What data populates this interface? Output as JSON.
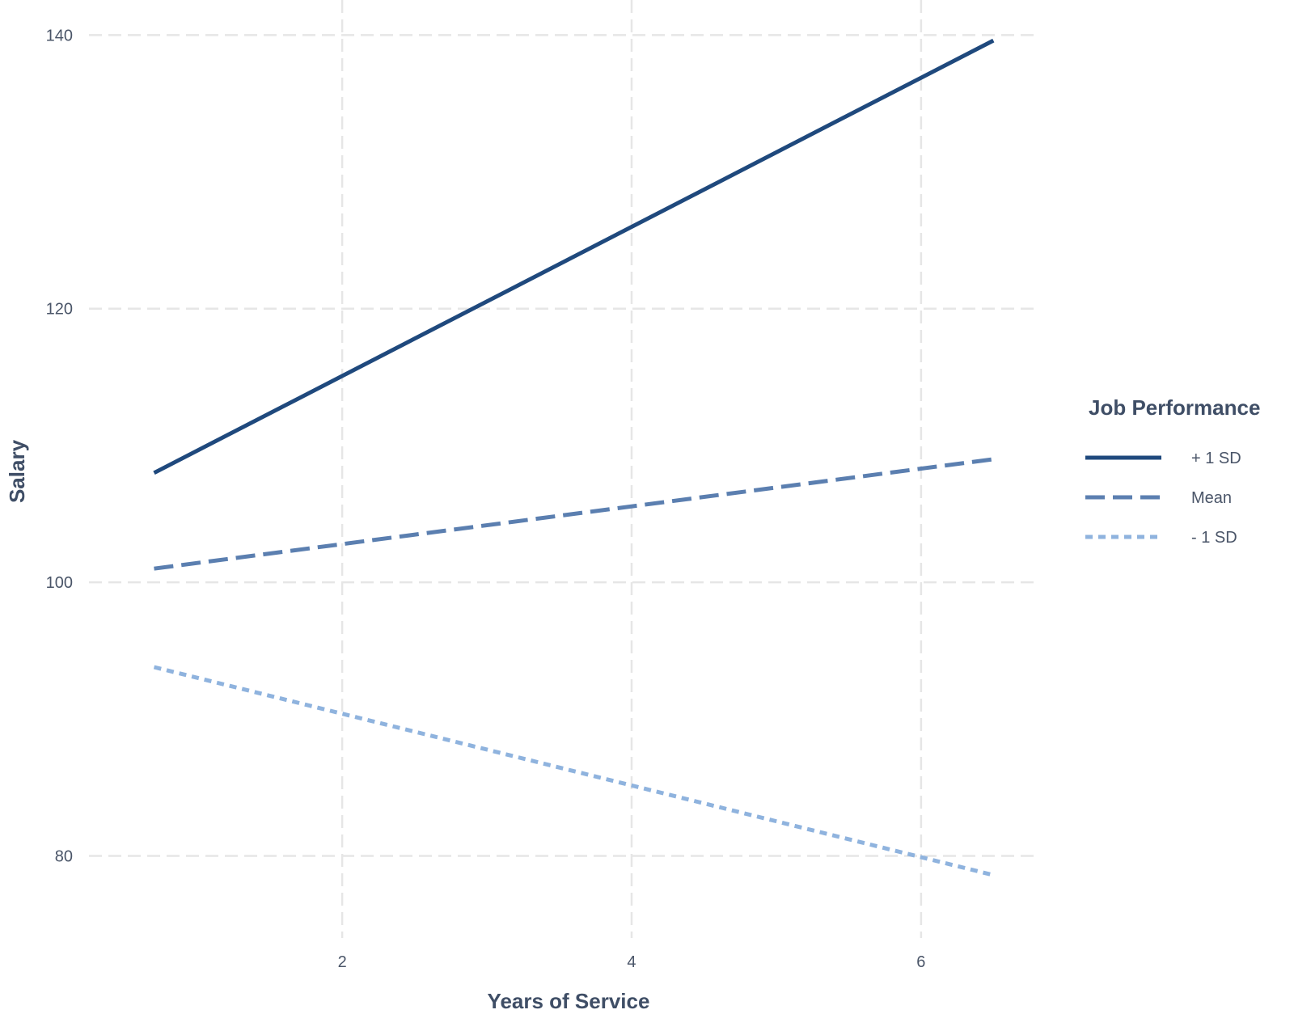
{
  "chart_data": {
    "type": "line",
    "title": "",
    "xlabel": "Years of Service",
    "ylabel": "Salary",
    "xlim": [
      0.25,
      6.8
    ],
    "ylim": [
      74.0,
      141.5
    ],
    "x_ticks": [
      2,
      4,
      6
    ],
    "y_ticks": [
      80,
      100,
      120,
      140
    ],
    "grid": true,
    "legend": {
      "title": "Job Performance",
      "position": "right"
    },
    "series": [
      {
        "name": "+ 1 SD",
        "color": "#1f497d",
        "style": "solid",
        "x": [
          0.7,
          6.5
        ],
        "y": [
          108.0,
          139.6
        ]
      },
      {
        "name": "Mean",
        "color": "#5b7fb0",
        "style": "dashed",
        "x": [
          0.7,
          6.5
        ],
        "y": [
          101.0,
          109.0
        ]
      },
      {
        "name": "- 1 SD",
        "color": "#8fb3de",
        "style": "dotted",
        "x": [
          0.7,
          6.5
        ],
        "y": [
          93.8,
          78.6
        ]
      }
    ]
  }
}
